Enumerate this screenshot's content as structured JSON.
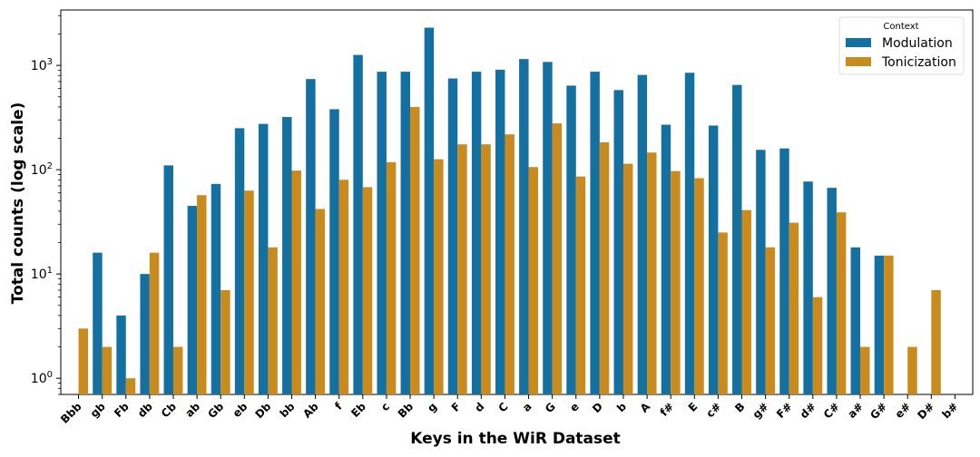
{
  "chart_data": {
    "type": "bar",
    "xlabel": "Keys in the WiR Dataset",
    "ylabel": "Total counts (log scale)",
    "yscale": "log",
    "ylim": [
      0.7,
      3400
    ],
    "y_ticks": [
      1,
      10,
      100,
      1000
    ],
    "y_tick_labels": [
      "10",
      "10",
      "10",
      "10"
    ],
    "y_tick_exponents": [
      "0",
      "1",
      "2",
      "3"
    ],
    "grid": false,
    "legend": {
      "title": "Context",
      "position": "top-right"
    },
    "categories": [
      "Bbb",
      "gb",
      "Fb",
      "db",
      "Cb",
      "ab",
      "Gb",
      "eb",
      "Db",
      "bb",
      "Ab",
      "f",
      "Eb",
      "c",
      "Bb",
      "g",
      "F",
      "d",
      "C",
      "a",
      "G",
      "e",
      "D",
      "b",
      "A",
      "f#",
      "E",
      "c#",
      "B",
      "g#",
      "F#",
      "d#",
      "C#",
      "a#",
      "G#",
      "e#",
      "D#",
      "b#"
    ],
    "series": [
      {
        "name": "Modulation",
        "color": "#1470a1",
        "values": [
          null,
          16,
          4,
          10,
          110,
          45,
          73,
          250,
          275,
          320,
          740,
          380,
          1260,
          870,
          870,
          2300,
          750,
          870,
          910,
          1150,
          1080,
          640,
          870,
          580,
          810,
          270,
          850,
          265,
          650,
          155,
          160,
          77,
          67,
          18,
          15,
          null,
          null,
          null
        ]
      },
      {
        "name": "Tonicization",
        "color": "#c98a1e",
        "values": [
          3,
          2,
          1,
          16,
          2,
          57,
          7,
          63,
          18,
          98,
          42,
          80,
          68,
          118,
          400,
          126,
          175,
          175,
          218,
          106,
          278,
          86,
          183,
          114,
          146,
          97,
          83,
          25,
          41,
          18,
          31,
          6,
          39,
          2,
          15,
          2,
          7,
          null
        ]
      }
    ]
  }
}
